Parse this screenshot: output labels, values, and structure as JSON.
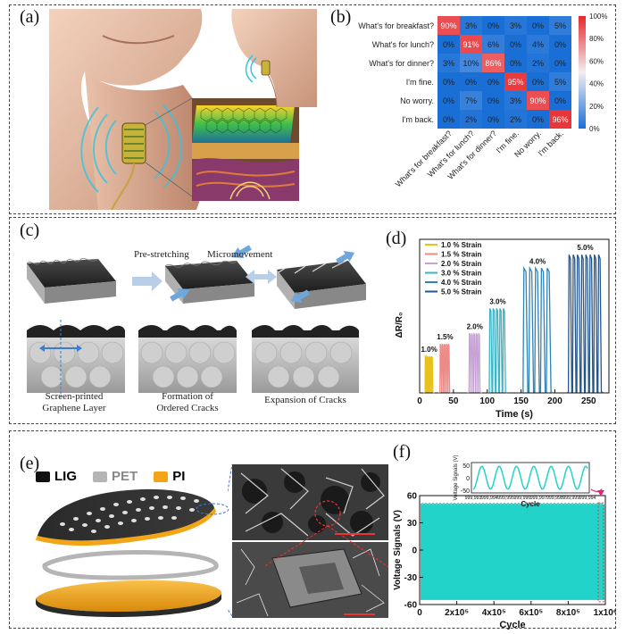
{
  "panels": {
    "a": {
      "label": "(a)"
    },
    "b": {
      "label": "(b)"
    },
    "c": {
      "label": "(c)"
    },
    "d": {
      "label": "(d)"
    },
    "e": {
      "label": "(e)"
    },
    "f": {
      "label": "(f)"
    }
  },
  "panel_b": {
    "row_labels": [
      "What's for breakfast?",
      "What's for lunch?",
      "What's for dinner?",
      "I'm fine.",
      "No worry.",
      "I'm back."
    ],
    "col_labels": [
      "What's for breakfast?",
      "What's for lunch?",
      "What's for dinner?",
      "I'm fine.",
      "No worry.",
      "I'm back."
    ],
    "matrix": [
      [
        "90%",
        "3%",
        "0%",
        "3%",
        "0%",
        "5%"
      ],
      [
        "0%",
        "91%",
        "6%",
        "0%",
        "4%",
        "0%"
      ],
      [
        "3%",
        "10%",
        "86%",
        "0%",
        "2%",
        "0%"
      ],
      [
        "0%",
        "0%",
        "0%",
        "95%",
        "0%",
        "5%"
      ],
      [
        "0%",
        "7%",
        "0%",
        "3%",
        "90%",
        "0%"
      ],
      [
        "0%",
        "2%",
        "0%",
        "2%",
        "0%",
        "96%"
      ]
    ],
    "colorbar_ticks": [
      "100%",
      "80%",
      "60%",
      "40%",
      "20%",
      "0%"
    ],
    "colors": {
      "low": "#1a6fd6",
      "mid": "#f3eef2",
      "high": "#e8262a"
    }
  },
  "panel_c": {
    "top_labels": [
      "Pre-stretching",
      "Micromovement"
    ],
    "bottom_labels": [
      [
        "Screen-printed",
        "Graphene Layer"
      ],
      [
        "Formation of",
        "Ordered Cracks"
      ],
      [
        "Expansion of Cracks"
      ]
    ]
  },
  "panel_e": {
    "legend": [
      {
        "label": "LIG",
        "color": "#111111"
      },
      {
        "label": "PET",
        "color": "#b5b5b5"
      },
      {
        "label": "PI",
        "color": "#f2a516"
      }
    ]
  },
  "chart_data": [
    {
      "panel": "d",
      "type": "line",
      "xlabel": "Time (s)",
      "ylabel": "ΔR/R₀",
      "xlim": [
        0,
        280
      ],
      "xticks": [
        "0",
        "50",
        "100",
        "150",
        "200",
        "250"
      ],
      "xtick_values": [
        0,
        50,
        100,
        150,
        200,
        250
      ],
      "series": [
        {
          "name": "1.0 % Strain",
          "label": "1.0%",
          "color": "#e8c21b",
          "start": 8,
          "end": 20,
          "peaks": 5,
          "peak": 1.9
        },
        {
          "name": "1.5 % Strain",
          "label": "1.5%",
          "color": "#ee8a87",
          "start": 30,
          "end": 45,
          "peaks": 5,
          "peak": 2.55
        },
        {
          "name": "2.0 % Strain",
          "label": "2.0%",
          "color": "#c7a2d6",
          "start": 73,
          "end": 90,
          "peaks": 5,
          "peak": 3.1
        },
        {
          "name": "3.0 % Strain",
          "label": "3.0%",
          "color": "#3ab5c5",
          "start": 103,
          "end": 128,
          "peaks": 5,
          "peak": 4.4
        },
        {
          "name": "4.0 % Strain",
          "label": "4.0%",
          "color": "#2f82b5",
          "start": 153,
          "end": 196,
          "peaks": 5,
          "peak": 6.5
        },
        {
          "name": "5.0 % Strain",
          "label": "5.0%",
          "color": "#24558c",
          "start": 220,
          "end": 270,
          "peaks": 8,
          "peak": 7.2
        }
      ],
      "ymax": 8
    },
    {
      "panel": "f",
      "type": "line",
      "xlabel": "Cycle",
      "ylabel": "Voltage Signals (V)",
      "ylim": [
        -60,
        60
      ],
      "yticks": [
        "60",
        "30",
        "0",
        "-30",
        "-60"
      ],
      "ytick_values": [
        60,
        30,
        0,
        -30,
        -60
      ],
      "xticks": [
        "0",
        "2x10⁵",
        "4x10⁵",
        "6x10⁵",
        "8x10⁵",
        "1x10⁶"
      ],
      "xtick_values": [
        0,
        200000,
        400000,
        600000,
        800000,
        1000000
      ],
      "color": "#22d3c9",
      "amplitude": [
        -55,
        50
      ],
      "inset": {
        "xlabel": "Cycle",
        "ylabel": "Voltage Signals (V)",
        "yticks": [
          "50",
          "0",
          "-50"
        ],
        "ytick_values": [
          50,
          0,
          -50
        ],
        "xticks": [
          "999,993",
          "999,994",
          "999,995",
          "999,996",
          "999,997",
          "999,998",
          "999,999",
          "999,994"
        ],
        "xrange": [
          999993,
          1000000
        ],
        "cycles": 6.6
      }
    }
  ]
}
